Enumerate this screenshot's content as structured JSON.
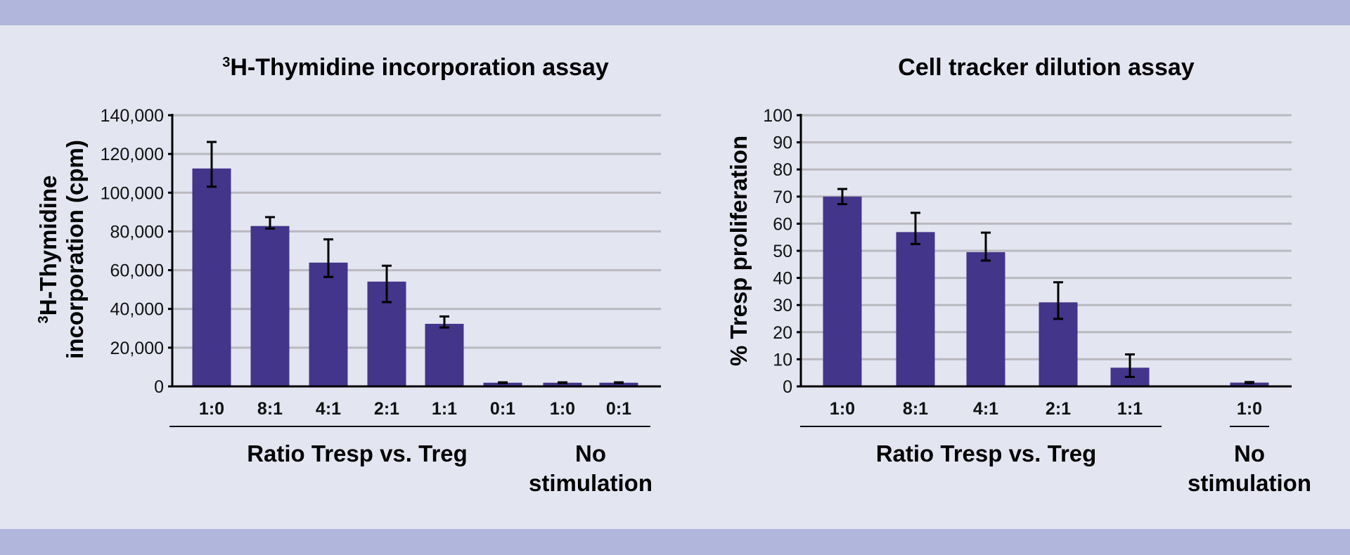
{
  "colors": {
    "banner": "#b1b6dc",
    "background": "#e3e5f1",
    "bar": "#43358a",
    "grid": "#b9b9bf",
    "axis": "#000000"
  },
  "chart_data": [
    {
      "type": "bar",
      "title_sup": "3",
      "title": "H-Thymidine incorporation assay",
      "ylabel_sup": "3",
      "ylabel_line1": "H-Thymidine",
      "ylabel_line2": "incorporation (cpm)",
      "ylim": [
        0,
        140000
      ],
      "yticks": [
        "0",
        "20,000",
        "40,000",
        "60,000",
        "80,000",
        "100,000",
        "120,000",
        "140,000"
      ],
      "grid": true,
      "categories": [
        "1:0",
        "8:1",
        "4:1",
        "2:1",
        "1:1",
        "0:1",
        "1:0",
        "0:1"
      ],
      "values": [
        112500,
        82800,
        63900,
        54100,
        32300,
        1900,
        1900,
        1900
      ],
      "error_low": [
        103100,
        81500,
        56500,
        43500,
        30400,
        1700,
        1700,
        1700
      ],
      "error_high": [
        126200,
        87400,
        75900,
        62300,
        36100,
        2100,
        2100,
        2100
      ],
      "groups": [
        {
          "label": "Ratio Tresp vs. Treg",
          "lines": [
            "Ratio Tresp vs. Treg"
          ],
          "from": 0,
          "to": 5
        },
        {
          "label": "No stimulation",
          "lines": [
            "No",
            "stimulation"
          ],
          "from": 6,
          "to": 7
        }
      ]
    },
    {
      "type": "bar",
      "title": "Cell tracker dilution assay",
      "ylabel": "% Tresp proliferation",
      "ylim": [
        0,
        100
      ],
      "yticks": [
        "0",
        "10",
        "20",
        "30",
        "40",
        "50",
        "60",
        "70",
        "80",
        "90",
        "100"
      ],
      "grid": true,
      "categories": [
        "1:0",
        "8:1",
        "4:1",
        "2:1",
        "1:1",
        "1:0"
      ],
      "values": [
        70.0,
        56.9,
        49.5,
        31.0,
        6.9,
        1.4
      ],
      "error_low": [
        67.2,
        52.5,
        46.4,
        24.9,
        3.5,
        1.2
      ],
      "error_high": [
        72.8,
        64.0,
        56.7,
        38.4,
        11.8,
        1.6
      ],
      "groups": [
        {
          "label": "Ratio Tresp vs. Treg",
          "lines": [
            "Ratio Tresp vs. Treg"
          ],
          "from": 0,
          "to": 4
        },
        {
          "label": "No stimulation",
          "lines": [
            "No",
            "stimulation"
          ],
          "from": 5,
          "to": 5
        }
      ]
    }
  ]
}
